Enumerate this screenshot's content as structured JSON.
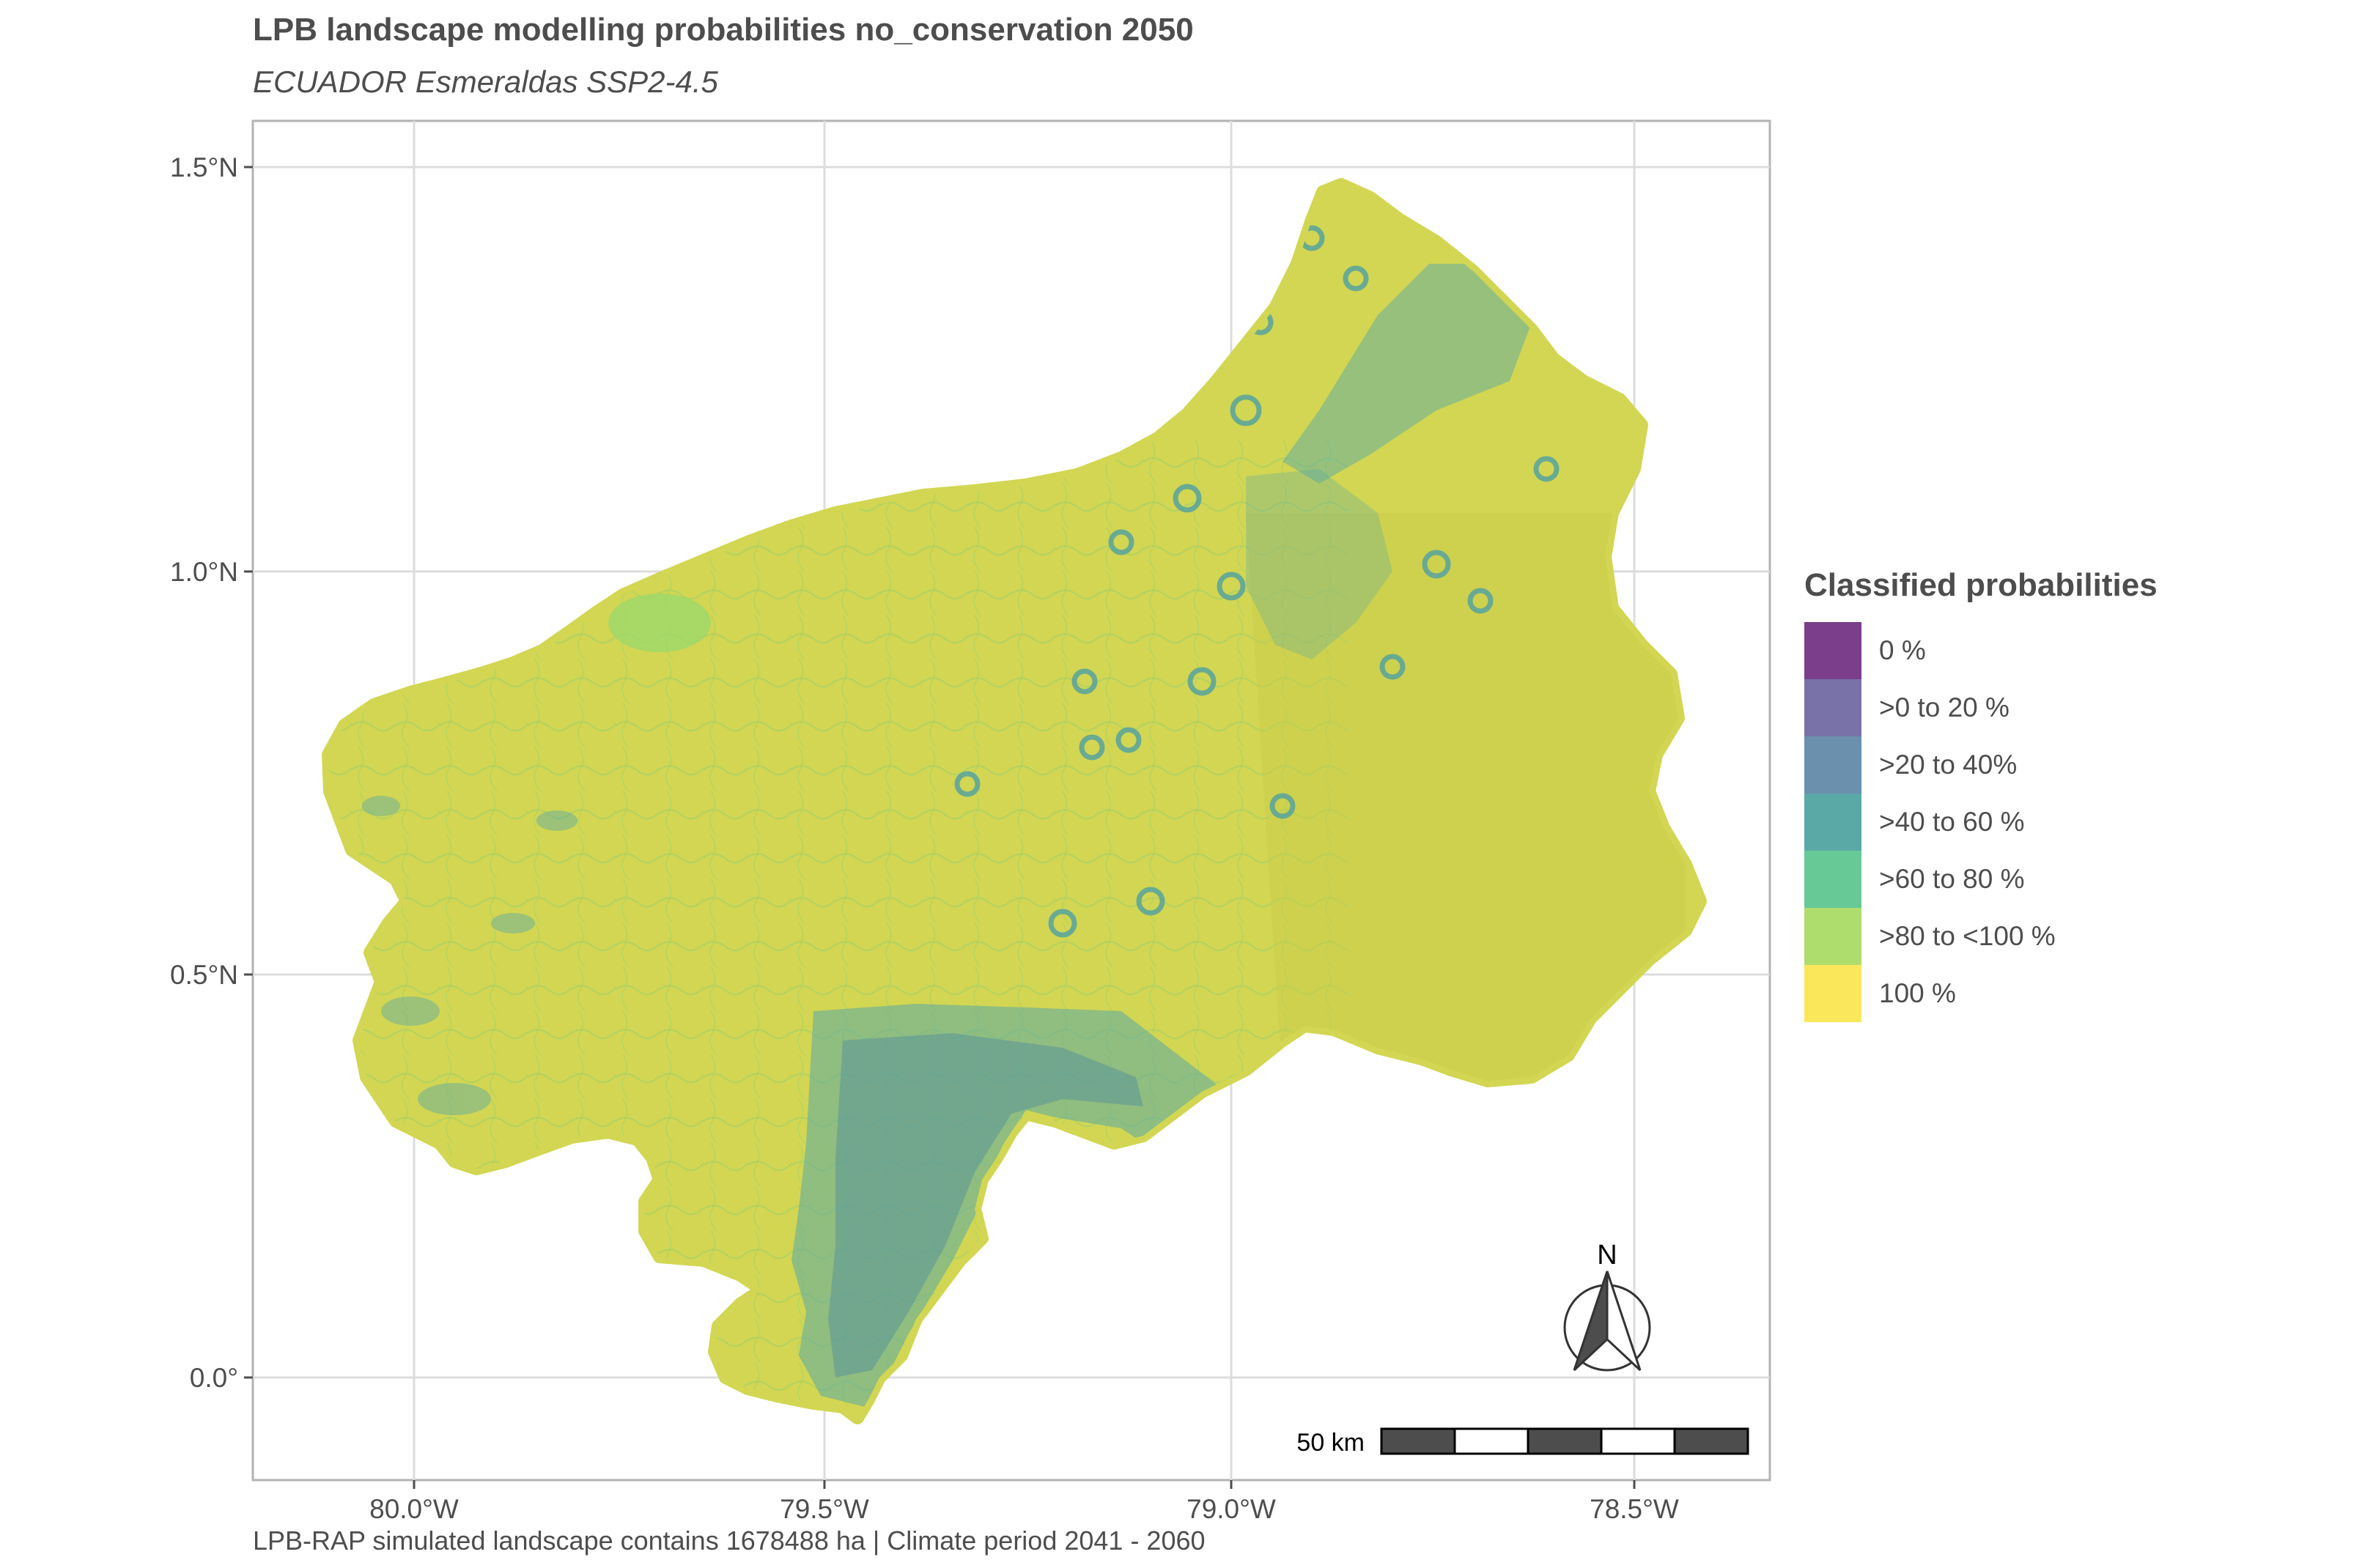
{
  "title": "LPB landscape modelling probabilities no_conservation 2050",
  "subtitle": "ECUADOR Esmeraldas SSP2-4.5",
  "caption": "LPB-RAP simulated landscape contains 1678488 ha | Climate period 2041 - 2060",
  "map": {
    "x_ticks": [
      "80.0°W",
      "79.5°W",
      "79.0°W",
      "78.5°W"
    ],
    "y_ticks": [
      "1.5°N",
      "1.0°N",
      "0.5°N",
      "0.0°"
    ],
    "x_range_deg": [
      -80.2,
      -78.33
    ],
    "y_range_deg": [
      -0.12,
      1.55
    ],
    "grid": true
  },
  "scale_bar": {
    "label": "50 km"
  },
  "north_arrow": {
    "label": "N"
  },
  "legend": {
    "title": "Classified probabilities",
    "items": [
      {
        "label": "0 %",
        "color": "#7a3e8a"
      },
      {
        "label": ">0 to 20 %",
        "color": "#7872a9"
      },
      {
        "label": ">20 to 40%",
        "color": "#6a90ad"
      },
      {
        "label": ">40 to 60 %",
        "color": "#5aa9a6"
      },
      {
        "label": ">60 to 80 %",
        "color": "#66c996"
      },
      {
        "label": ">80 to <100 %",
        "color": "#aedd6e"
      },
      {
        "label": "100 %",
        "color": "#fbe85a"
      }
    ]
  },
  "colors": {
    "land_base": "#d2d652",
    "land_shade": "#c8cc4a",
    "panel_border": "#b3b3b3",
    "grid_line": "#dcdcdc",
    "text": "#4d4d4d"
  }
}
